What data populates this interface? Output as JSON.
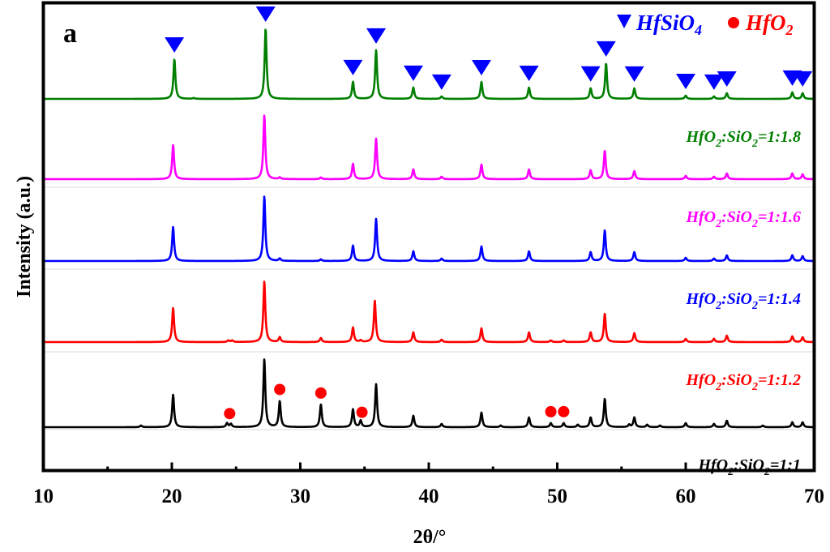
{
  "chart_data": {
    "type": "line",
    "panel_label": "a",
    "xlabel": "2θ/°",
    "ylabel": "Intensity (a.u.)",
    "xlim": [
      10,
      70
    ],
    "x_ticks": [
      10,
      20,
      30,
      40,
      50,
      60,
      70
    ],
    "x_minor_ticks": [
      15,
      25,
      35,
      45,
      55,
      65
    ],
    "grid": false,
    "legend": {
      "position": "top-right",
      "entries": [
        {
          "marker": "down-triangle",
          "color": "#0000FF",
          "label": "HfSiO",
          "subscript": "4"
        },
        {
          "marker": "circle",
          "color": "#FF0000",
          "label": "HfO",
          "subscript": "2"
        }
      ]
    },
    "series": [
      {
        "name": "HfO2:SiO2=1:1",
        "label_parts": [
          "HfO",
          "2",
          ":SiO",
          "2",
          "=1:1"
        ],
        "color": "#000000",
        "offset": 0,
        "peaks": [
          [
            17.6,
            2
          ],
          [
            20.1,
            40
          ],
          [
            24.3,
            5
          ],
          [
            24.6,
            4
          ],
          [
            27.2,
            84
          ],
          [
            28.4,
            32
          ],
          [
            31.6,
            28
          ],
          [
            34.1,
            22
          ],
          [
            34.7,
            8
          ],
          [
            35.9,
            53
          ],
          [
            38.8,
            14
          ],
          [
            41.0,
            4
          ],
          [
            44.1,
            18
          ],
          [
            45.6,
            2
          ],
          [
            47.8,
            12
          ],
          [
            49.5,
            5
          ],
          [
            50.5,
            5
          ],
          [
            51.6,
            3
          ],
          [
            52.6,
            12
          ],
          [
            53.7,
            35
          ],
          [
            55.6,
            3
          ],
          [
            56.0,
            12
          ],
          [
            57.0,
            3
          ],
          [
            58.0,
            2
          ],
          [
            60.0,
            5
          ],
          [
            62.2,
            4
          ],
          [
            63.2,
            8
          ],
          [
            66.0,
            2
          ],
          [
            68.3,
            6
          ],
          [
            69.1,
            6
          ]
        ]
      },
      {
        "name": "HfO2:SiO2=1:1.2",
        "label_parts": [
          "HfO",
          "2",
          ":SiO",
          "2",
          "=1:1.2"
        ],
        "color": "#FF0000",
        "offset": 105,
        "peaks": [
          [
            20.1,
            42
          ],
          [
            24.4,
            2
          ],
          [
            24.7,
            2
          ],
          [
            27.2,
            75
          ],
          [
            28.4,
            6
          ],
          [
            31.6,
            5
          ],
          [
            34.1,
            18
          ],
          [
            34.7,
            2
          ],
          [
            35.8,
            51
          ],
          [
            38.8,
            12
          ],
          [
            41.0,
            3
          ],
          [
            44.1,
            17
          ],
          [
            47.8,
            12
          ],
          [
            49.5,
            2
          ],
          [
            50.5,
            2
          ],
          [
            52.6,
            12
          ],
          [
            53.7,
            35
          ],
          [
            56.0,
            11
          ],
          [
            60.0,
            4
          ],
          [
            62.2,
            4
          ],
          [
            63.2,
            8
          ],
          [
            68.3,
            7
          ],
          [
            69.1,
            6
          ]
        ]
      },
      {
        "name": "HfO2:SiO2=1:1.4",
        "label_parts": [
          "HfO",
          "2",
          ":SiO",
          "2",
          "=1:1.4"
        ],
        "color": "#0000FF",
        "offset": 205,
        "peaks": [
          [
            20.1,
            42
          ],
          [
            27.2,
            80
          ],
          [
            28.4,
            3
          ],
          [
            31.6,
            2
          ],
          [
            34.1,
            19
          ],
          [
            35.9,
            52
          ],
          [
            38.8,
            12
          ],
          [
            41.0,
            3
          ],
          [
            44.1,
            18
          ],
          [
            47.8,
            12
          ],
          [
            52.6,
            11
          ],
          [
            53.7,
            38
          ],
          [
            56.0,
            11
          ],
          [
            60.0,
            4
          ],
          [
            62.2,
            3
          ],
          [
            63.2,
            7
          ],
          [
            68.3,
            7
          ],
          [
            69.1,
            6
          ]
        ]
      },
      {
        "name": "HfO2:SiO2=1:1.6",
        "label_parts": [
          "HfO",
          "2",
          ":SiO",
          "2",
          "=1:1.6"
        ],
        "color": "#FF00FF",
        "offset": 306,
        "peaks": [
          [
            20.1,
            42
          ],
          [
            27.2,
            79
          ],
          [
            28.4,
            2
          ],
          [
            31.6,
            2
          ],
          [
            34.1,
            19
          ],
          [
            35.9,
            50
          ],
          [
            38.8,
            12
          ],
          [
            41.0,
            3
          ],
          [
            44.1,
            18
          ],
          [
            47.8,
            12
          ],
          [
            52.6,
            11
          ],
          [
            53.7,
            35
          ],
          [
            56.0,
            10
          ],
          [
            60.0,
            4
          ],
          [
            62.2,
            3
          ],
          [
            63.2,
            7
          ],
          [
            68.3,
            7
          ],
          [
            69.1,
            6
          ]
        ]
      },
      {
        "name": "HfO2:SiO2=1:1.8",
        "label_parts": [
          "HfO",
          "2",
          ":SiO",
          "2",
          "=1:1.8"
        ],
        "color": "#007F00",
        "offset": 405,
        "peaks": [
          [
            20.2,
            49
          ],
          [
            21.7,
            1
          ],
          [
            27.3,
            87
          ],
          [
            34.1,
            21
          ],
          [
            35.9,
            60
          ],
          [
            38.8,
            14
          ],
          [
            41.0,
            3
          ],
          [
            44.1,
            21
          ],
          [
            47.8,
            14
          ],
          [
            52.6,
            13
          ],
          [
            53.8,
            44
          ],
          [
            56.0,
            13
          ],
          [
            60.0,
            4
          ],
          [
            62.2,
            3
          ],
          [
            63.2,
            7
          ],
          [
            68.3,
            8
          ],
          [
            69.1,
            7
          ]
        ]
      }
    ],
    "hfsio4_markers": [
      20.2,
      27.3,
      34.1,
      35.9,
      38.8,
      41.0,
      44.1,
      47.8,
      52.6,
      53.8,
      56.0,
      60.0,
      62.2,
      63.2,
      68.3,
      69.1
    ],
    "hfo2_markers": [
      24.5,
      28.4,
      31.6,
      34.8,
      49.5,
      50.5
    ]
  }
}
